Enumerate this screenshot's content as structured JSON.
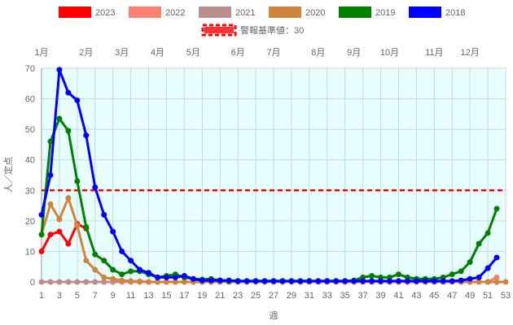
{
  "chart_data": {
    "type": "line",
    "xlabel": "週",
    "ylabel": "人／定点",
    "xlim": [
      1,
      53
    ],
    "ylim": [
      0,
      70
    ],
    "yticks": [
      0,
      10,
      20,
      30,
      40,
      50,
      60,
      70
    ],
    "xticks": [
      1,
      3,
      5,
      7,
      9,
      11,
      13,
      15,
      17,
      19,
      21,
      23,
      25,
      27,
      29,
      31,
      33,
      35,
      37,
      39,
      41,
      43,
      45,
      47,
      49,
      51,
      53
    ],
    "months": [
      {
        "label": "1月",
        "week": 1
      },
      {
        "label": "2月",
        "week": 6
      },
      {
        "label": "3月",
        "week": 10
      },
      {
        "label": "4月",
        "week": 14
      },
      {
        "label": "5月",
        "week": 18
      },
      {
        "label": "6月",
        "week": 23
      },
      {
        "label": "7月",
        "week": 27
      },
      {
        "label": "8月",
        "week": 32
      },
      {
        "label": "9月",
        "week": 36
      },
      {
        "label": "10月",
        "week": 40
      },
      {
        "label": "11月",
        "week": 45
      },
      {
        "label": "12月",
        "week": 49
      }
    ],
    "grid": true,
    "background": "#e8fdfe",
    "legend_position": "top",
    "threshold": {
      "label": "警報基準値：30",
      "value": 30,
      "color": "#ff0000"
    },
    "series": [
      {
        "name": "2023",
        "color": "#ff0000",
        "values": [
          10,
          15.5,
          16.5,
          12.5,
          19,
          17.5
        ]
      },
      {
        "name": "2022",
        "color": "#fa8072",
        "values": [
          0,
          0,
          0,
          0,
          0,
          0,
          0,
          0,
          0,
          0,
          0,
          0,
          0,
          0,
          0,
          0,
          0,
          0,
          0,
          0,
          0,
          0,
          0,
          0,
          0,
          0,
          0,
          0,
          0,
          0,
          0,
          0,
          0,
          0,
          0,
          0,
          0,
          0,
          0,
          0,
          0,
          0,
          0,
          0,
          0,
          0,
          0,
          0,
          0,
          0,
          0,
          1.5
        ]
      },
      {
        "name": "2021",
        "color": "#bc8f8f",
        "values": [
          0,
          0,
          0,
          0,
          0,
          0,
          0,
          0,
          0,
          0,
          0,
          0,
          0,
          0,
          0,
          0,
          0,
          0,
          0,
          0,
          0,
          0,
          0,
          0,
          0,
          0,
          0,
          0,
          0,
          0,
          0,
          0,
          0,
          0,
          0,
          0,
          0,
          0,
          0,
          0,
          0,
          0,
          0,
          0,
          0,
          0,
          0,
          0,
          0,
          0,
          0,
          0
        ]
      },
      {
        "name": "2020",
        "color": "#cd853f",
        "values": [
          15.5,
          25.5,
          20.5,
          27.5,
          18.5,
          7,
          4,
          1.5,
          1,
          0.5,
          0.3,
          0.2,
          0,
          0,
          0,
          0,
          0,
          0,
          0,
          0,
          0,
          0,
          0,
          0,
          0,
          0,
          0,
          0,
          0,
          0,
          0,
          0,
          0,
          0,
          0,
          0,
          0,
          0,
          0,
          0,
          0,
          0,
          0,
          0,
          0,
          0,
          0,
          0,
          0,
          0,
          0,
          0,
          0
        ]
      },
      {
        "name": "2019",
        "color": "#008000",
        "values": [
          15.5,
          46,
          53.5,
          49.5,
          33,
          18,
          9,
          7,
          4,
          2.5,
          3.5,
          3.5,
          2.5,
          1.5,
          2,
          2.5,
          1.5,
          1,
          0.8,
          1,
          0.5,
          0.3,
          0.3,
          0.3,
          0.3,
          0.3,
          0.3,
          0.3,
          0.3,
          0.3,
          0.3,
          0.3,
          0.3,
          0.3,
          0.3,
          0.5,
          1.5,
          2,
          1.5,
          1.5,
          2.5,
          1.5,
          1,
          1,
          1,
          1.5,
          2.5,
          3.5,
          6.5,
          12.5,
          16,
          24
        ]
      },
      {
        "name": "2018",
        "color": "#0000ff",
        "values": [
          22,
          35,
          69.5,
          62,
          59.5,
          48,
          31,
          22,
          16.5,
          10,
          7,
          4,
          3,
          1.5,
          1.5,
          1.5,
          2,
          1,
          0.5,
          0.5,
          0.5,
          0.5,
          0.3,
          0.3,
          0.3,
          0.3,
          0.3,
          0.3,
          0.3,
          0.3,
          0.3,
          0.3,
          0.3,
          0.3,
          0.3,
          0.3,
          0.3,
          0.3,
          0.3,
          0.3,
          0.3,
          0.3,
          0.3,
          0.3,
          0.3,
          0.3,
          0.3,
          0.5,
          1,
          1.5,
          4.5,
          8
        ]
      }
    ]
  }
}
